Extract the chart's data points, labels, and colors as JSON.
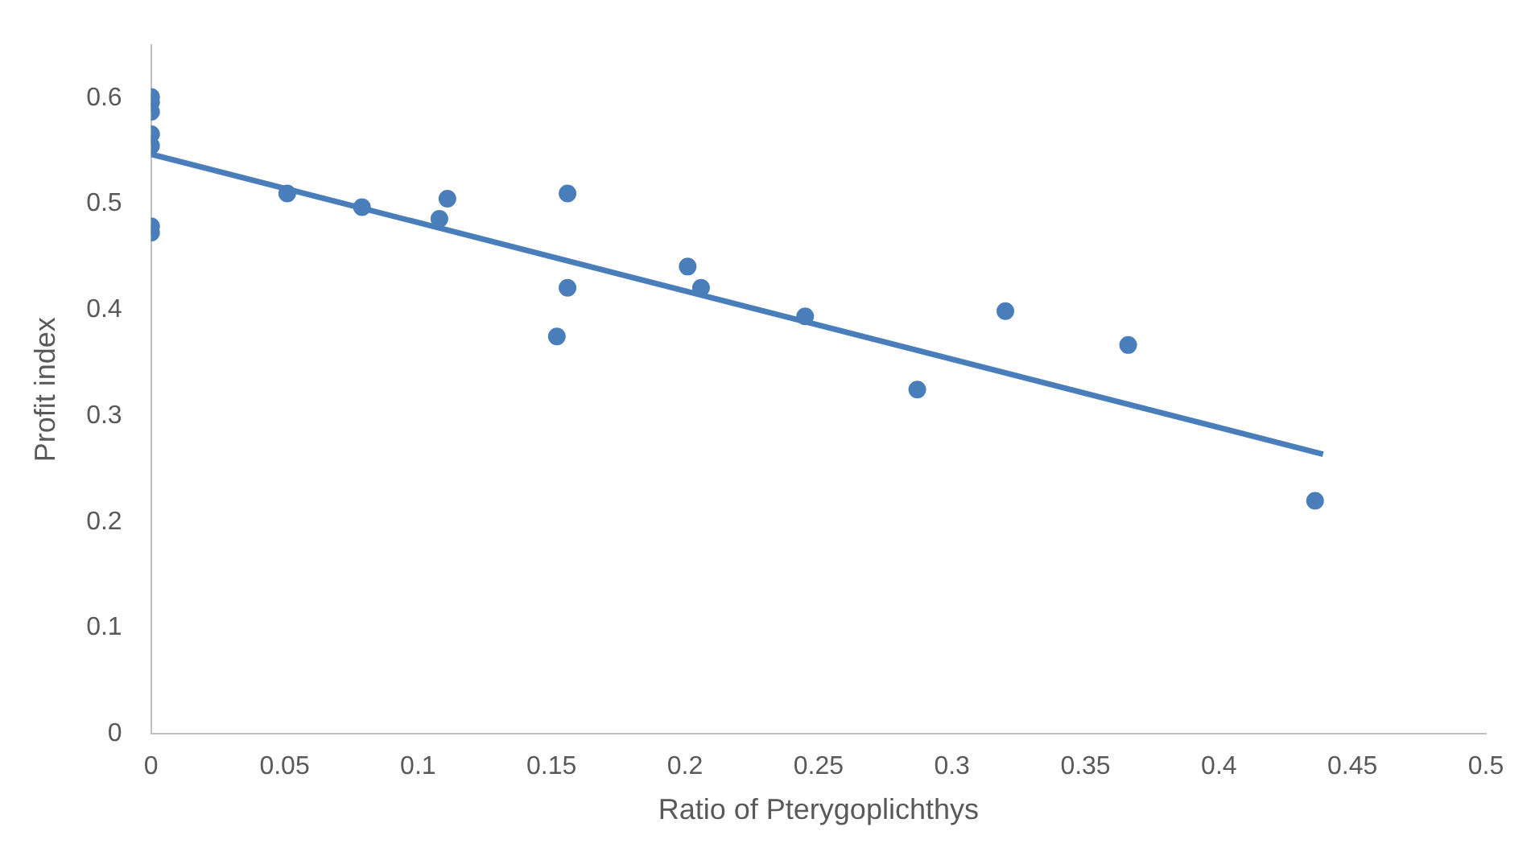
{
  "chart_data": {
    "type": "scatter",
    "xlabel": "Ratio of Pterygoplichthys",
    "ylabel": "Profit index",
    "xlim": [
      0,
      0.5
    ],
    "ylim": [
      0,
      0.65
    ],
    "xticks": [
      0,
      0.05,
      0.1,
      0.15,
      0.2,
      0.25,
      0.3,
      0.35,
      0.4,
      0.45,
      0.5
    ],
    "yticks": [
      0,
      0.1,
      0.2,
      0.3,
      0.4,
      0.5,
      0.6
    ],
    "grid": false,
    "legend": false,
    "marker": "circle",
    "series": [
      {
        "type": "scatter",
        "color": "#4a7ebb",
        "x": [
          0,
          0,
          0,
          0,
          0,
          0,
          0,
          0.051,
          0.079,
          0.108,
          0.111,
          0.152,
          0.156,
          0.156,
          0.201,
          0.206,
          0.245,
          0.287,
          0.32,
          0.366,
          0.436
        ],
        "values": [
          0.601,
          0.596,
          0.587,
          0.566,
          0.555,
          0.479,
          0.473,
          0.51,
          0.497,
          0.486,
          0.505,
          0.375,
          0.51,
          0.421,
          0.441,
          0.421,
          0.394,
          0.325,
          0.399,
          0.367,
          0.22
        ]
      },
      {
        "type": "line",
        "color": "#4a7ebb",
        "line_style": "solid",
        "marker": "none",
        "x": [
          0,
          0.439
        ],
        "values": [
          0.547,
          0.264
        ]
      }
    ]
  }
}
